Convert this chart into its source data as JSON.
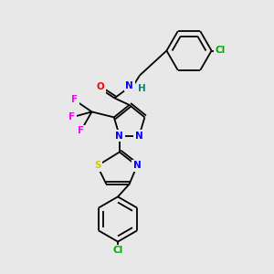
{
  "background_color": "#e8e8e8",
  "bond_color": "#000000",
  "atom_colors": {
    "N": "#0000ff",
    "O": "#ff0000",
    "F": "#ff00ff",
    "S": "#cccc00",
    "Cl": "#00aa00",
    "H_teal": "#008080",
    "C": "#000000"
  },
  "lw": 1.3,
  "fs": 7.5,
  "xlim": [
    0,
    10
  ],
  "ylim": [
    0,
    10
  ]
}
